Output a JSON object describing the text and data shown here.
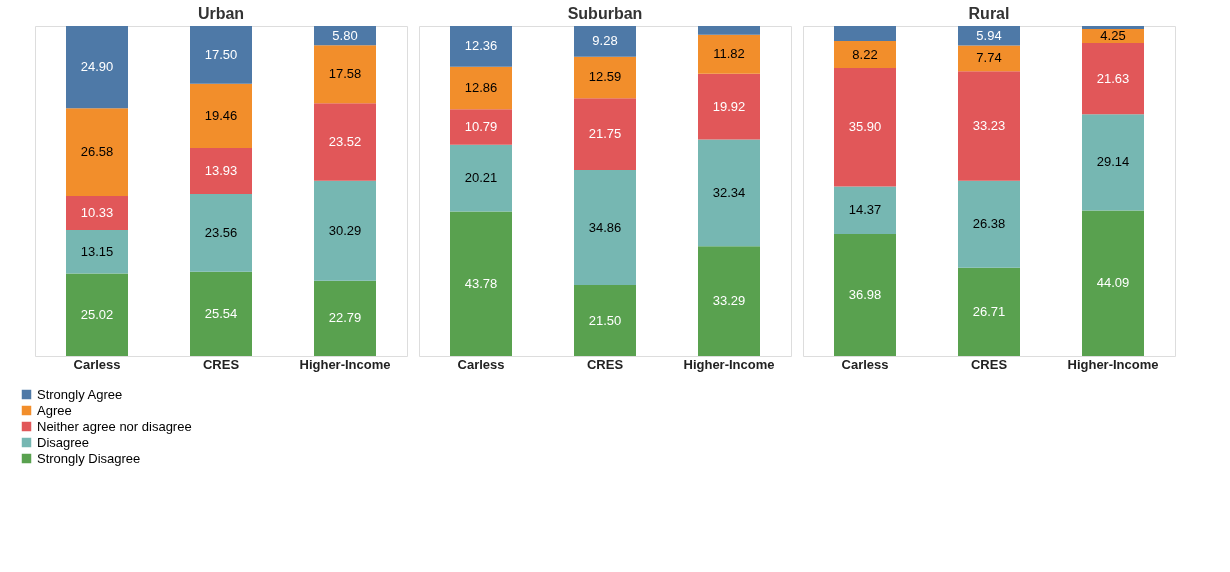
{
  "chart_data": [
    {
      "type": "bar",
      "stacked": true,
      "title": "Urban",
      "categories": [
        "Carless",
        "CRES",
        "Higher-Income"
      ],
      "legend": "bottom left",
      "series": [
        {
          "name": "Strongly Disagree",
          "color": "#59a14f",
          "values": [
            25.02,
            25.54,
            22.79
          ],
          "value_labels": [
            "25.02",
            "25.54",
            "22.79"
          ]
        },
        {
          "name": "Disagree",
          "color": "#76b7b2",
          "values": [
            13.15,
            23.56,
            30.29
          ],
          "value_labels": [
            "13.15",
            "23.56",
            "30.29"
          ]
        },
        {
          "name": "Neither agree nor disagree",
          "color": "#e15759",
          "values": [
            10.33,
            13.93,
            23.52
          ],
          "value_labels": [
            "10.33",
            "13.93",
            "23.52"
          ]
        },
        {
          "name": "Agree",
          "color": "#f28e2b",
          "values": [
            26.58,
            19.46,
            17.58
          ],
          "value_labels": [
            "26.58",
            "19.46",
            "17.58"
          ]
        },
        {
          "name": "Strongly Agree",
          "color": "#4e79a7",
          "values": [
            24.9,
            17.5,
            5.8
          ],
          "value_labels": [
            "24.90",
            "17.50",
            "5.80"
          ]
        }
      ]
    },
    {
      "type": "bar",
      "stacked": true,
      "title": "Suburban",
      "categories": [
        "Carless",
        "CRES",
        "Higher-Income"
      ],
      "series": [
        {
          "name": "Strongly Disagree",
          "color": "#59a14f",
          "values": [
            43.78,
            21.5,
            33.29
          ],
          "value_labels": [
            "43.78",
            "21.50",
            "33.29"
          ]
        },
        {
          "name": "Disagree",
          "color": "#76b7b2",
          "values": [
            20.21,
            34.86,
            32.34
          ],
          "value_labels": [
            "20.21",
            "34.86",
            "32.34"
          ]
        },
        {
          "name": "Neither agree nor disagree",
          "color": "#e15759",
          "values": [
            10.79,
            21.75,
            19.92
          ],
          "value_labels": [
            "10.79",
            "21.75",
            "19.92"
          ]
        },
        {
          "name": "Agree",
          "color": "#f28e2b",
          "values": [
            12.86,
            12.59,
            11.82
          ],
          "value_labels": [
            "12.86",
            "12.59",
            "11.82"
          ]
        },
        {
          "name": "Strongly Agree",
          "color": "#4e79a7",
          "values": [
            12.36,
            9.28,
            2.63
          ],
          "value_labels": [
            "12.36",
            "9.28",
            null
          ]
        }
      ]
    },
    {
      "type": "bar",
      "stacked": true,
      "title": "Rural",
      "categories": [
        "Carless",
        "CRES",
        "Higher-Income"
      ],
      "series": [
        {
          "name": "Strongly Disagree",
          "color": "#59a14f",
          "values": [
            36.98,
            26.71,
            44.09
          ],
          "value_labels": [
            "36.98",
            "26.71",
            "44.09"
          ]
        },
        {
          "name": "Disagree",
          "color": "#76b7b2",
          "values": [
            14.37,
            26.38,
            29.14
          ],
          "value_labels": [
            "14.37",
            "26.38",
            "29.14"
          ]
        },
        {
          "name": "Neither agree nor disagree",
          "color": "#e15759",
          "values": [
            35.9,
            33.23,
            21.63
          ],
          "value_labels": [
            "35.90",
            "33.23",
            "21.63"
          ]
        },
        {
          "name": "Agree",
          "color": "#f28e2b",
          "values": [
            8.22,
            7.74,
            4.25
          ],
          "value_labels": [
            "8.22",
            "7.74",
            "4.25"
          ]
        },
        {
          "name": "Strongly Agree",
          "color": "#4e79a7",
          "values": [
            4.53,
            5.94,
            0.89
          ],
          "value_labels": [
            null,
            "5.94",
            null
          ]
        }
      ]
    }
  ]
}
